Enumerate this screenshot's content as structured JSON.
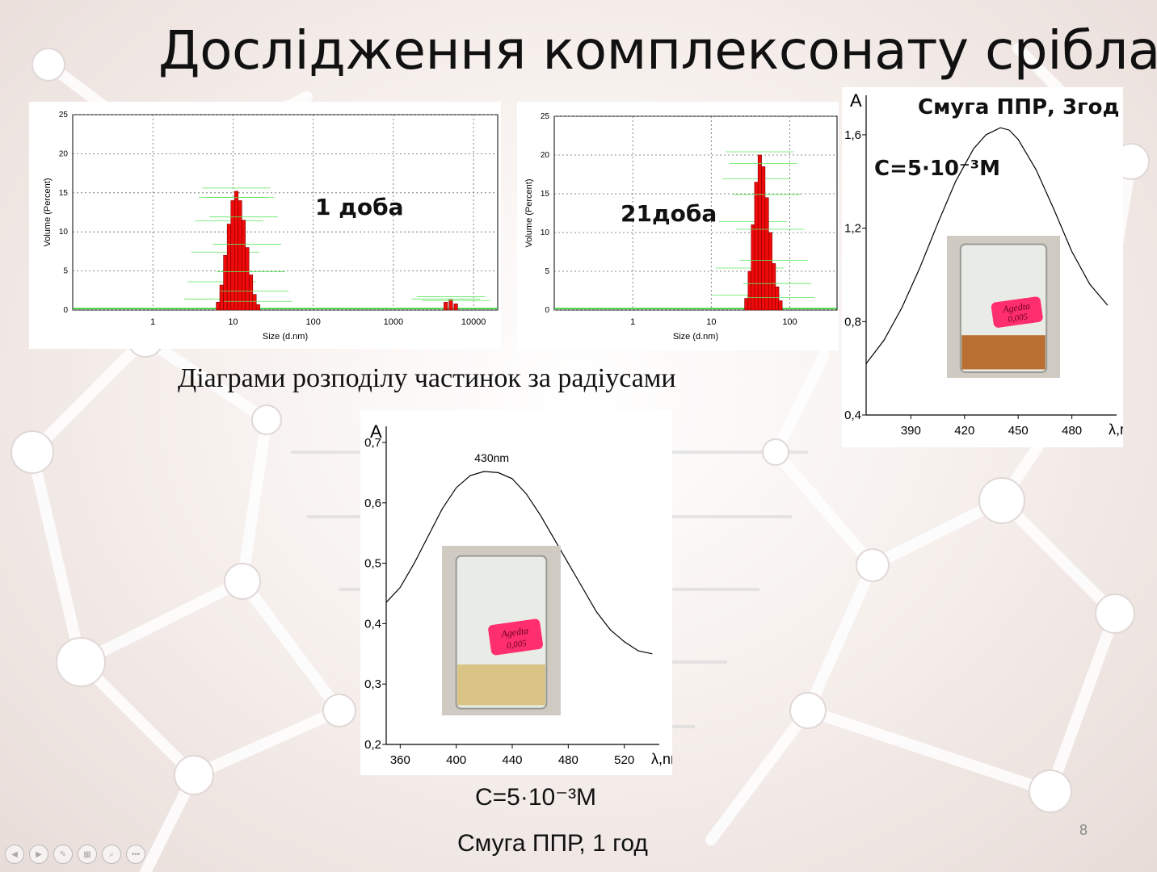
{
  "slide": {
    "title": "Дослідження комплексонату срібла",
    "caption": "Діаграми розподілу частинок за радіусами",
    "slide_number": "8"
  },
  "nav_icons": [
    "prev-icon",
    "next-icon",
    "pen-icon",
    "slides-icon",
    "zoom-icon",
    "more-icon"
  ],
  "chart_data": [
    {
      "type": "bar",
      "annotation": "1 доба",
      "xlabel": "Size (d.nm)",
      "ylabel": "Volume (Percent)",
      "x_scale": "log",
      "xlim": [
        0.1,
        20000
      ],
      "ylim": [
        0,
        25
      ],
      "x_ticks": [
        "1",
        "10",
        "100",
        "1000",
        "10000"
      ],
      "y_ticks": [
        "0",
        "5",
        "10",
        "15",
        "20",
        "25"
      ],
      "bars": [
        {
          "x": 6.5,
          "y": 1.0
        },
        {
          "x": 7.2,
          "y": 3.2
        },
        {
          "x": 8.0,
          "y": 7.0
        },
        {
          "x": 8.9,
          "y": 11.0
        },
        {
          "x": 9.9,
          "y": 14.0
        },
        {
          "x": 11.0,
          "y": 15.2
        },
        {
          "x": 12.2,
          "y": 14.0
        },
        {
          "x": 13.5,
          "y": 11.5
        },
        {
          "x": 15.0,
          "y": 8.0
        },
        {
          "x": 16.7,
          "y": 4.5
        },
        {
          "x": 18.5,
          "y": 2.0
        },
        {
          "x": 20.5,
          "y": 0.7
        },
        {
          "x": 4500,
          "y": 1.0
        },
        {
          "x": 5200,
          "y": 1.3
        },
        {
          "x": 6000,
          "y": 0.8
        }
      ]
    },
    {
      "type": "bar",
      "annotation": "21доба",
      "xlabel": "Size (d.nm)",
      "ylabel": "Volume (Percent)",
      "x_scale": "log",
      "xlim": [
        0.1,
        400
      ],
      "ylim": [
        0,
        25
      ],
      "x_ticks": [
        "1",
        "10",
        "100"
      ],
      "y_ticks": [
        "0",
        "5",
        "10",
        "15",
        "20",
        "25"
      ],
      "bars": [
        {
          "x": 28,
          "y": 1.5
        },
        {
          "x": 31,
          "y": 5.0
        },
        {
          "x": 34,
          "y": 11.0
        },
        {
          "x": 37.5,
          "y": 16.5
        },
        {
          "x": 41.5,
          "y": 20.0
        },
        {
          "x": 46,
          "y": 18.5
        },
        {
          "x": 51,
          "y": 14.5
        },
        {
          "x": 56.5,
          "y": 10.0
        },
        {
          "x": 62.5,
          "y": 6.0
        },
        {
          "x": 69,
          "y": 3.0
        },
        {
          "x": 76,
          "y": 1.2
        }
      ]
    },
    {
      "type": "line",
      "title": "Смуга ППР, 3год",
      "concentration": "C=5·10⁻³M",
      "ylabel": "A",
      "xlabel": "λ,nm",
      "xlim": [
        365,
        505
      ],
      "ylim": [
        0.4,
        1.7
      ],
      "x_ticks": [
        "390",
        "420",
        "450",
        "480"
      ],
      "y_ticks": [
        "0,4",
        "0,8",
        "1,2",
        "1,6"
      ],
      "x": [
        365,
        375,
        385,
        395,
        405,
        415,
        425,
        432,
        440,
        445,
        450,
        460,
        470,
        480,
        490,
        500
      ],
      "y": [
        0.62,
        0.72,
        0.86,
        1.03,
        1.22,
        1.4,
        1.54,
        1.6,
        1.63,
        1.62,
        1.58,
        1.45,
        1.28,
        1.1,
        0.96,
        0.87
      ]
    },
    {
      "type": "line",
      "title": "Смуга ППР, 1 год",
      "concentration": "C=5·10⁻³M",
      "peak_label": "430nm",
      "ylabel": "A",
      "xlabel": "λ,nm",
      "xlim": [
        350,
        545
      ],
      "ylim": [
        0.2,
        0.7
      ],
      "x_ticks": [
        "360",
        "400",
        "440",
        "480",
        "520"
      ],
      "y_ticks": [
        "0,2",
        "0,3",
        "0,4",
        "0,5",
        "0,6",
        "0,7"
      ],
      "x": [
        350,
        360,
        370,
        380,
        390,
        400,
        410,
        420,
        430,
        440,
        450,
        460,
        470,
        480,
        490,
        500,
        510,
        520,
        530,
        540
      ],
      "y": [
        0.435,
        0.46,
        0.5,
        0.545,
        0.59,
        0.625,
        0.645,
        0.652,
        0.65,
        0.64,
        0.615,
        0.58,
        0.54,
        0.5,
        0.46,
        0.42,
        0.39,
        0.37,
        0.355,
        0.35
      ]
    }
  ],
  "beaker_photos": [
    {
      "label_line1": "Agedta",
      "label_line2": "0,005",
      "liquid_color": "#b5621e"
    },
    {
      "label_line1": "Agedta",
      "label_line2": "0,005",
      "liquid_color": "#d8c07a"
    }
  ]
}
